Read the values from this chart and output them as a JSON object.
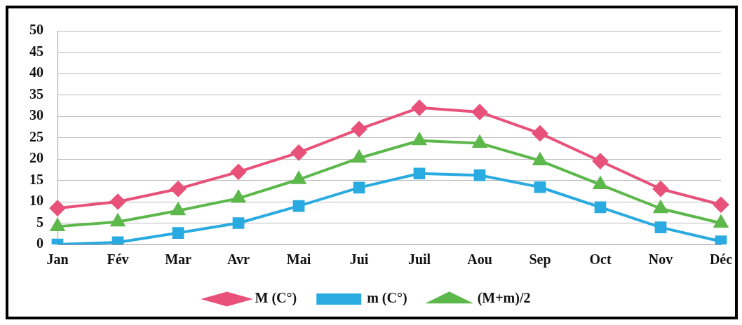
{
  "chart_data": {
    "type": "line",
    "categories": [
      "Jan",
      "Fév",
      "Mar",
      "Avr",
      "Mai",
      "Jui",
      "Juil",
      "Aou",
      "Sep",
      "Oct",
      "Nov",
      "Déc"
    ],
    "series": [
      {
        "name": "M (C°)",
        "color": "#e8517a",
        "marker": "diamond",
        "values": [
          8.5,
          10,
          13,
          17,
          21.5,
          27,
          32,
          31,
          26,
          19.5,
          13,
          9.3
        ]
      },
      {
        "name": "m (C°)",
        "color": "#29aae1",
        "marker": "square",
        "values": [
          0,
          0.5,
          2.7,
          5,
          9,
          13.3,
          16.6,
          16.2,
          13.4,
          8.7,
          4,
          0.7
        ]
      },
      {
        "name": "(M+m)/2",
        "color": "#5cb84a",
        "marker": "triangle",
        "values": [
          4.2,
          5.3,
          7.9,
          10.8,
          15.2,
          20.2,
          24.3,
          23.7,
          19.6,
          14,
          8.4,
          5
        ]
      }
    ],
    "ylim": [
      0,
      50
    ],
    "yticks": [
      0,
      5,
      10,
      15,
      20,
      25,
      30,
      35,
      40,
      45,
      50
    ],
    "grid": "y",
    "legend": "bottom",
    "line_style": "solid"
  }
}
